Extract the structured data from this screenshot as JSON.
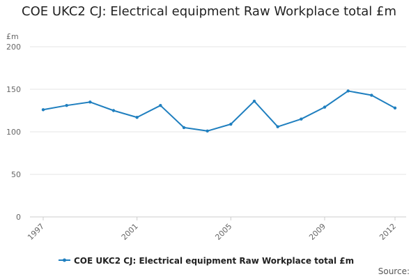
{
  "chart_data": {
    "type": "line",
    "title": "COE UKC2 CJ: Electrical equipment Raw Workplace total £m",
    "ylabel": "£m",
    "xlabel": "",
    "x": [
      1997,
      1998,
      1999,
      2000,
      2001,
      2002,
      2003,
      2004,
      2005,
      2006,
      2007,
      2008,
      2009,
      2010,
      2011,
      2012
    ],
    "xticks": [
      "1997",
      "2001",
      "2005",
      "2009",
      "2012"
    ],
    "yticks": [
      0,
      50,
      100,
      150,
      200
    ],
    "ylim": [
      0,
      200
    ],
    "series": [
      {
        "name": "COE UKC2 CJ: Electrical equipment Raw Workplace total £m",
        "values": [
          126,
          131,
          135,
          125,
          117,
          131,
          105,
          101,
          109,
          136,
          106,
          115,
          129,
          148,
          143,
          128
        ],
        "color": "#1f7fbf"
      }
    ],
    "legend": "bottom",
    "grid": true
  },
  "footer": {
    "source_label": "Source:"
  }
}
